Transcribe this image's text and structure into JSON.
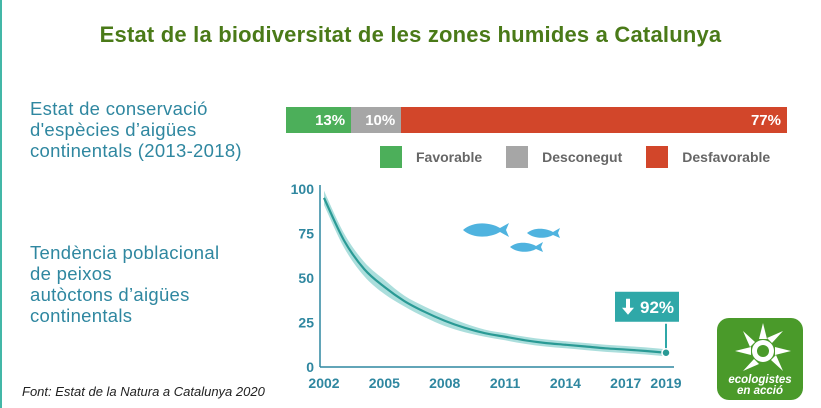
{
  "title": "Estat de la biodiversitat de les zones humides a Catalunya",
  "conservation": {
    "label_lines": [
      "Estat de conservació",
      "d'espècies d’aigües",
      "continentals (2013-2018)"
    ],
    "segments": [
      {
        "name": "Favorable",
        "value": 13,
        "label": "13%",
        "color": "#4caf5a"
      },
      {
        "name": "Desconegut",
        "value": 10,
        "label": "10%",
        "color": "#a6a6a6"
      },
      {
        "name": "Desfavorable",
        "value": 77,
        "label": "77%",
        "color": "#d2462a"
      }
    ]
  },
  "trend": {
    "label_lines": [
      "Tendència poblacional",
      "de peixos",
      "autòctons d’aigües",
      "continentals"
    ]
  },
  "chart_data": {
    "type": "line",
    "x": [
      2002,
      2003,
      2004,
      2005,
      2006,
      2007,
      2008,
      2009,
      2010,
      2011,
      2012,
      2013,
      2014,
      2015,
      2016,
      2017,
      2018,
      2019
    ],
    "series": [
      {
        "values": [
          95,
          71,
          55,
          45,
          37,
          31,
          26,
          22,
          19,
          17,
          15,
          13.5,
          12.5,
          11.5,
          10.5,
          9.8,
          9,
          8
        ]
      }
    ],
    "band": {
      "lower": [
        91,
        67,
        51,
        41,
        34,
        28,
        23,
        19.5,
        17,
        15,
        13,
        11.5,
        10.5,
        9.5,
        8.5,
        7.8,
        7,
        6
      ],
      "upper": [
        99,
        75,
        59,
        49,
        40,
        34,
        29,
        24.5,
        21,
        19,
        17,
        15.5,
        14.5,
        13.5,
        12.5,
        11.8,
        11,
        10
      ]
    },
    "x_ticks": [
      2002,
      2005,
      2008,
      2011,
      2014,
      2017,
      2019
    ],
    "y_ticks": [
      0,
      25,
      50,
      75,
      100
    ],
    "xlim": [
      2002,
      2019
    ],
    "ylim": [
      0,
      100
    ],
    "annotation": {
      "text": "92%",
      "arrow": "down-arrow-icon",
      "x": 2019,
      "y": 8
    },
    "line_color": "#2a9a95",
    "band_color": "#8fd3d0",
    "grid": false
  },
  "source": "Font: Estat de la Natura a Catalunya 2020",
  "logo": {
    "line1": "ecologistes",
    "line2": "en acció",
    "color": "#4a9a2a"
  },
  "icons": {
    "fish": "fish-icon",
    "sun": "sun-logo-icon"
  }
}
